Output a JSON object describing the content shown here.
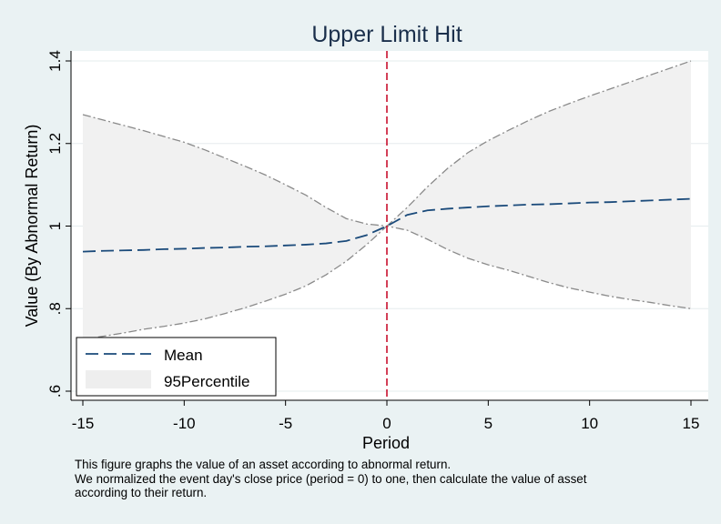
{
  "chart_data": {
    "type": "line",
    "title": "Upper Limit Hit",
    "xlabel": "Period",
    "ylabel": "Value (By Abnormal Return)",
    "xlim": [
      -15,
      15
    ],
    "ylim": [
      0.6,
      1.4
    ],
    "xticks": [
      "-15",
      "-10",
      "-5",
      "0",
      "5",
      "10",
      "15"
    ],
    "yticks": [
      ".6",
      ".8",
      "1",
      "1.2",
      "1.4"
    ],
    "event_line_x": 0,
    "grid": true,
    "legend_position": "bottom-left",
    "legend": [
      "Mean",
      "95Percentile"
    ],
    "x": [
      -15,
      -14,
      -13,
      -12,
      -11,
      -10,
      -9,
      -8,
      -7,
      -6,
      -5,
      -4,
      -3,
      -2,
      -1,
      0,
      1,
      2,
      3,
      4,
      5,
      6,
      7,
      8,
      9,
      10,
      11,
      12,
      13,
      14,
      15
    ],
    "series": [
      {
        "name": "Mean",
        "style": "dashed",
        "color": "#1a4a7a",
        "values": [
          0.938,
          0.94,
          0.941,
          0.942,
          0.944,
          0.945,
          0.947,
          0.948,
          0.95,
          0.951,
          0.953,
          0.955,
          0.958,
          0.964,
          0.978,
          1.0,
          1.027,
          1.038,
          1.042,
          1.045,
          1.048,
          1.05,
          1.052,
          1.053,
          1.055,
          1.057,
          1.058,
          1.06,
          1.062,
          1.064,
          1.066
        ]
      },
      {
        "name": "95Percentile",
        "type": "area",
        "fill": "#f1f1f1",
        "edge_color": "#8a8a8a",
        "upper": [
          1.27,
          1.257,
          1.244,
          1.231,
          1.217,
          1.203,
          1.185,
          1.165,
          1.145,
          1.124,
          1.1,
          1.075,
          1.045,
          1.018,
          1.005,
          1.0,
          1.045,
          1.095,
          1.14,
          1.178,
          1.207,
          1.232,
          1.256,
          1.278,
          1.297,
          1.315,
          1.332,
          1.349,
          1.366,
          1.383,
          1.4
        ],
        "lower": [
          0.725,
          0.733,
          0.741,
          0.75,
          0.757,
          0.765,
          0.775,
          0.788,
          0.802,
          0.818,
          0.835,
          0.855,
          0.882,
          0.915,
          0.955,
          1.0,
          0.99,
          0.968,
          0.943,
          0.922,
          0.906,
          0.893,
          0.878,
          0.863,
          0.85,
          0.84,
          0.83,
          0.822,
          0.815,
          0.807,
          0.8
        ]
      }
    ]
  },
  "note_lines": [
    "This figure graphs the value of an asset according to abnormal return.",
    "We normalized the event day's close price (period = 0) to one, then calculate the value of asset",
    "according to their return."
  ]
}
